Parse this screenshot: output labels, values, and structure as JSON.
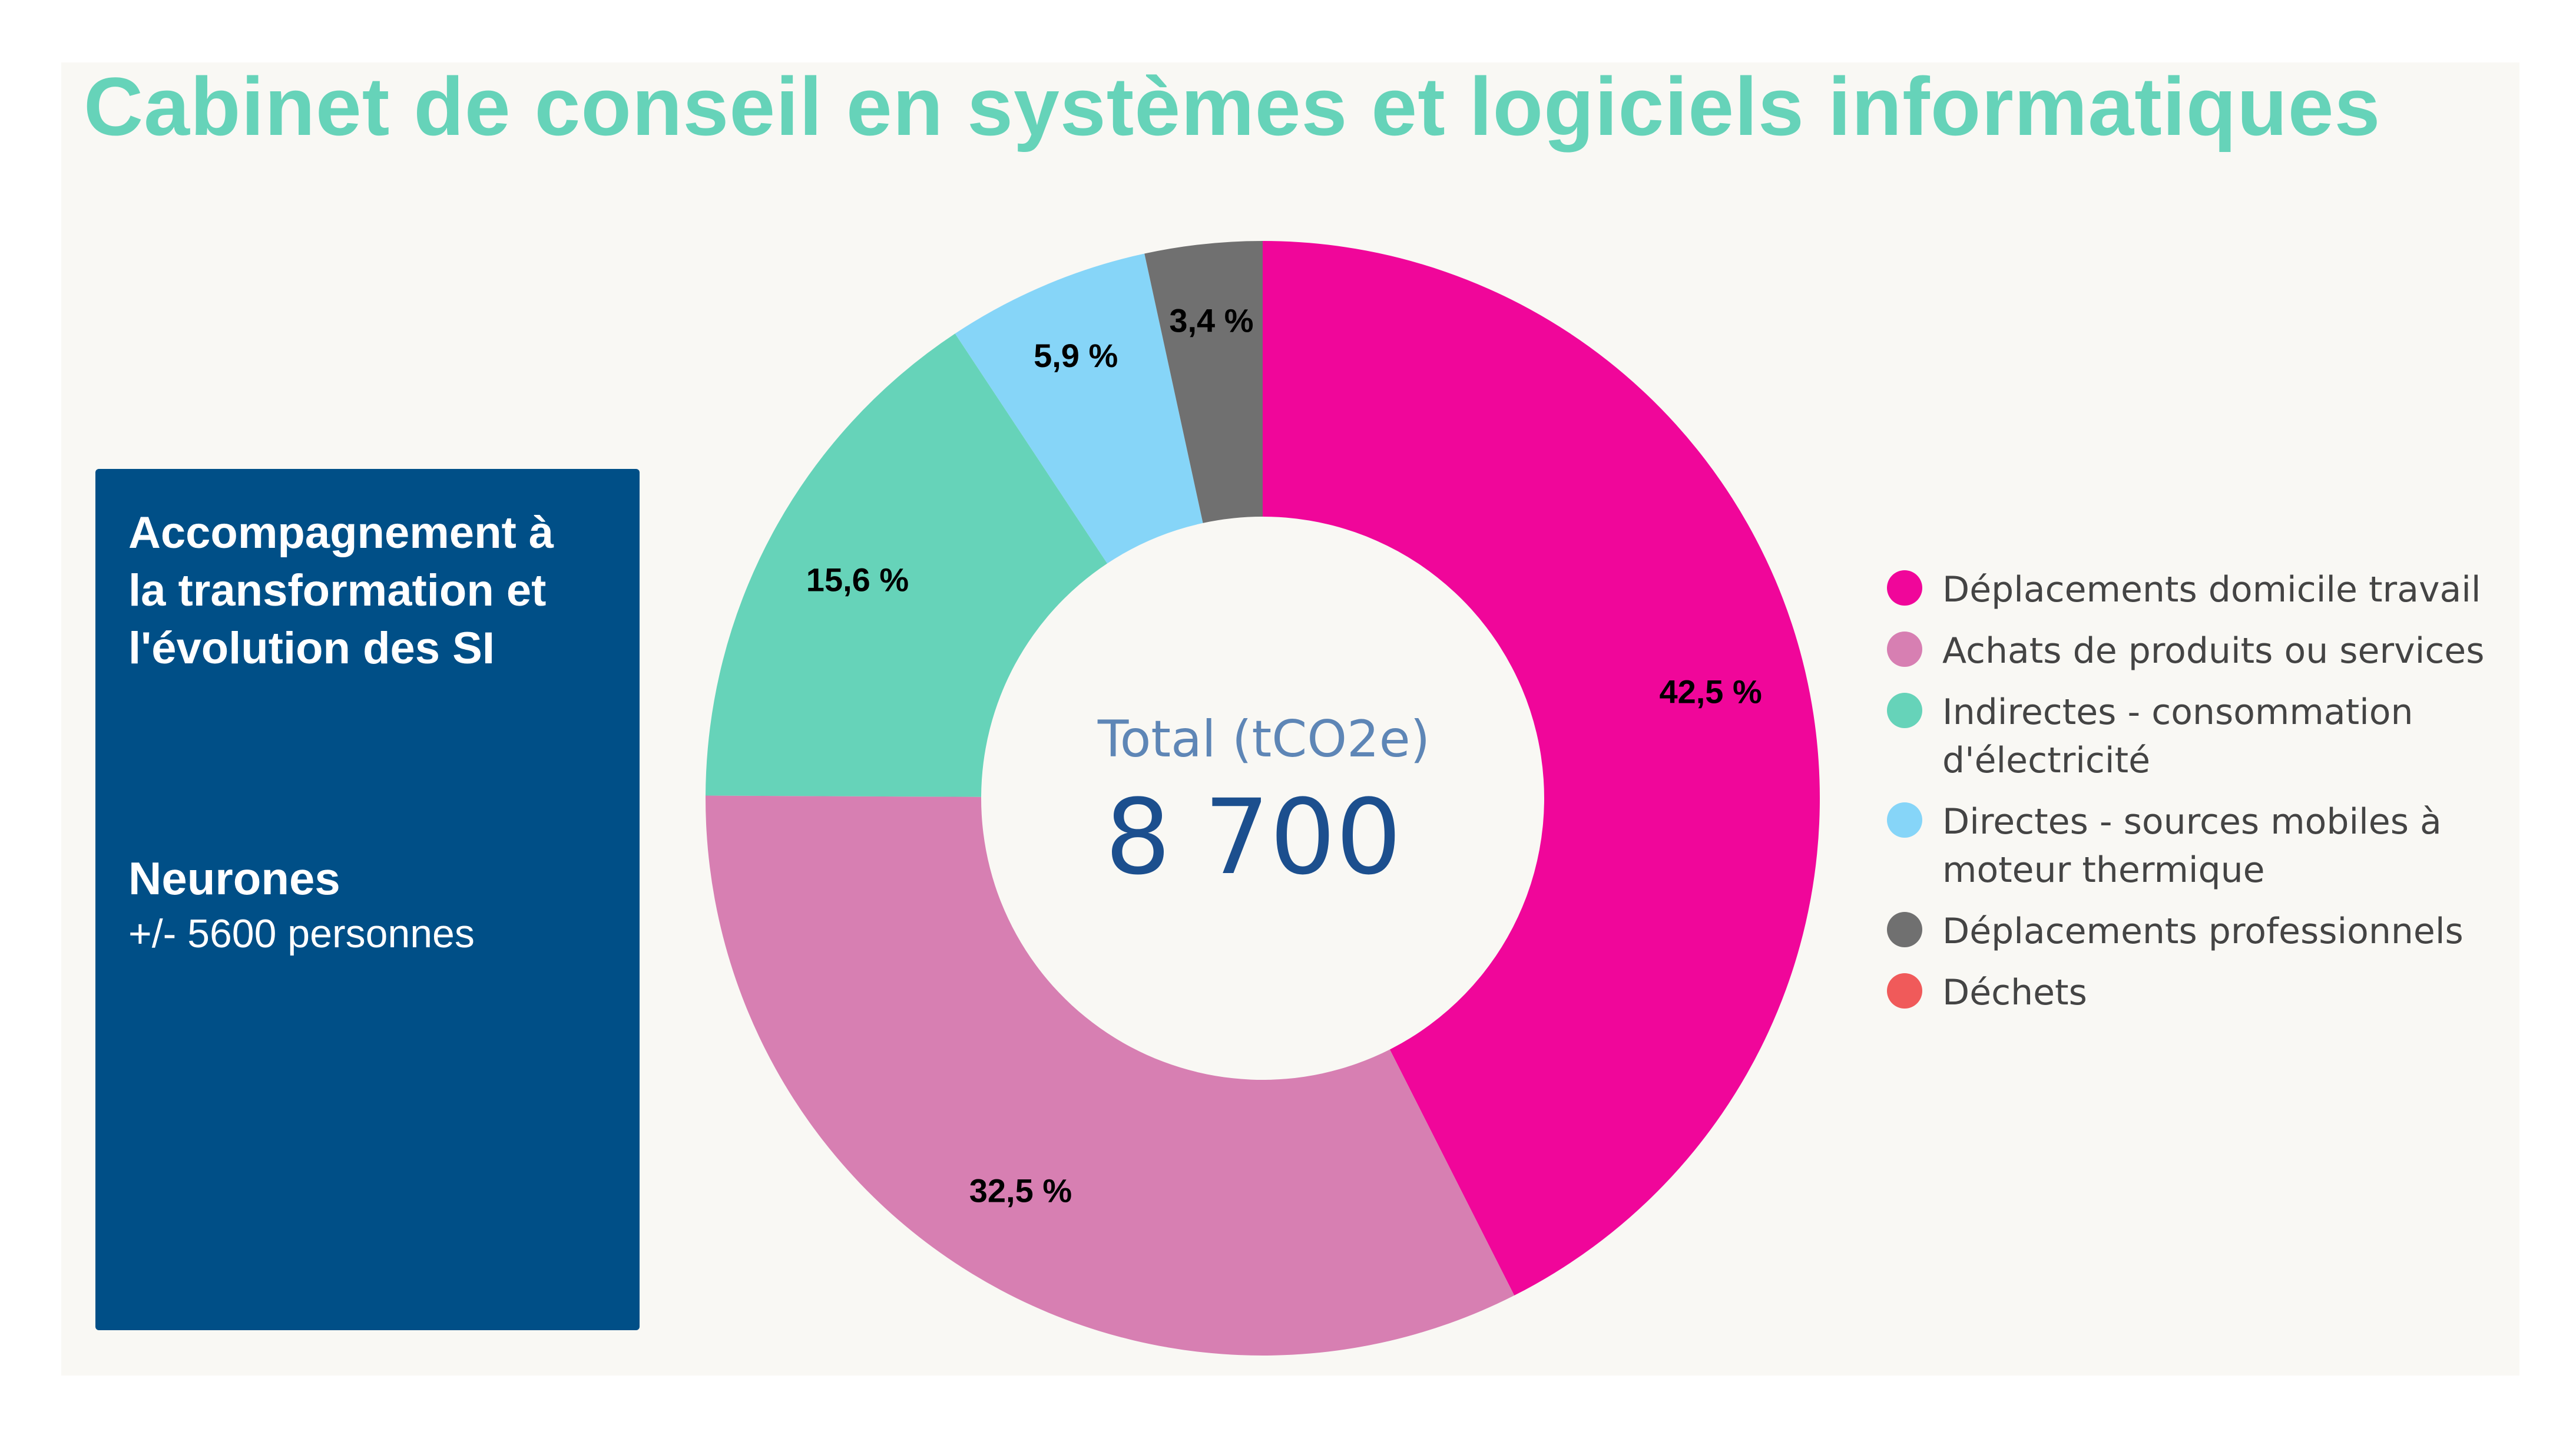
{
  "header": {
    "title": "Cabinet de conseil en systèmes et logiciels informatiques"
  },
  "info_box": {
    "heading_lines": [
      "Accompagnement à",
      "la transformation et",
      "l'évolution des SI"
    ],
    "company": "Neurones",
    "staff": "+/- 5600 personnes"
  },
  "chart_data": {
    "type": "pie",
    "donut": true,
    "total_label": "Total (tCO2e)",
    "total_value": "8 700",
    "legend_position": "right",
    "slices": [
      {
        "name": "Déplacements domicile travail",
        "value": 42.5,
        "label": "42,5 %",
        "color": "#f0069a"
      },
      {
        "name": "Achats de produits ou services",
        "value": 32.5,
        "label": "32,5 %",
        "color": "#d77fb2"
      },
      {
        "name": "Indirectes - consommation d'électricité",
        "value": 15.6,
        "label": "15,6 %",
        "color": "#66d3b9"
      },
      {
        "name": "Directes - sources mobiles à moteur thermique",
        "value": 5.9,
        "label": "5,9 %",
        "color": "#86d5f8"
      },
      {
        "name": "Déplacements professionnels",
        "value": 3.4,
        "label": "3,4 %",
        "color": "#707070"
      },
      {
        "name": "Déchets",
        "value": 0,
        "label": "",
        "color": "#f05a5a"
      }
    ]
  }
}
